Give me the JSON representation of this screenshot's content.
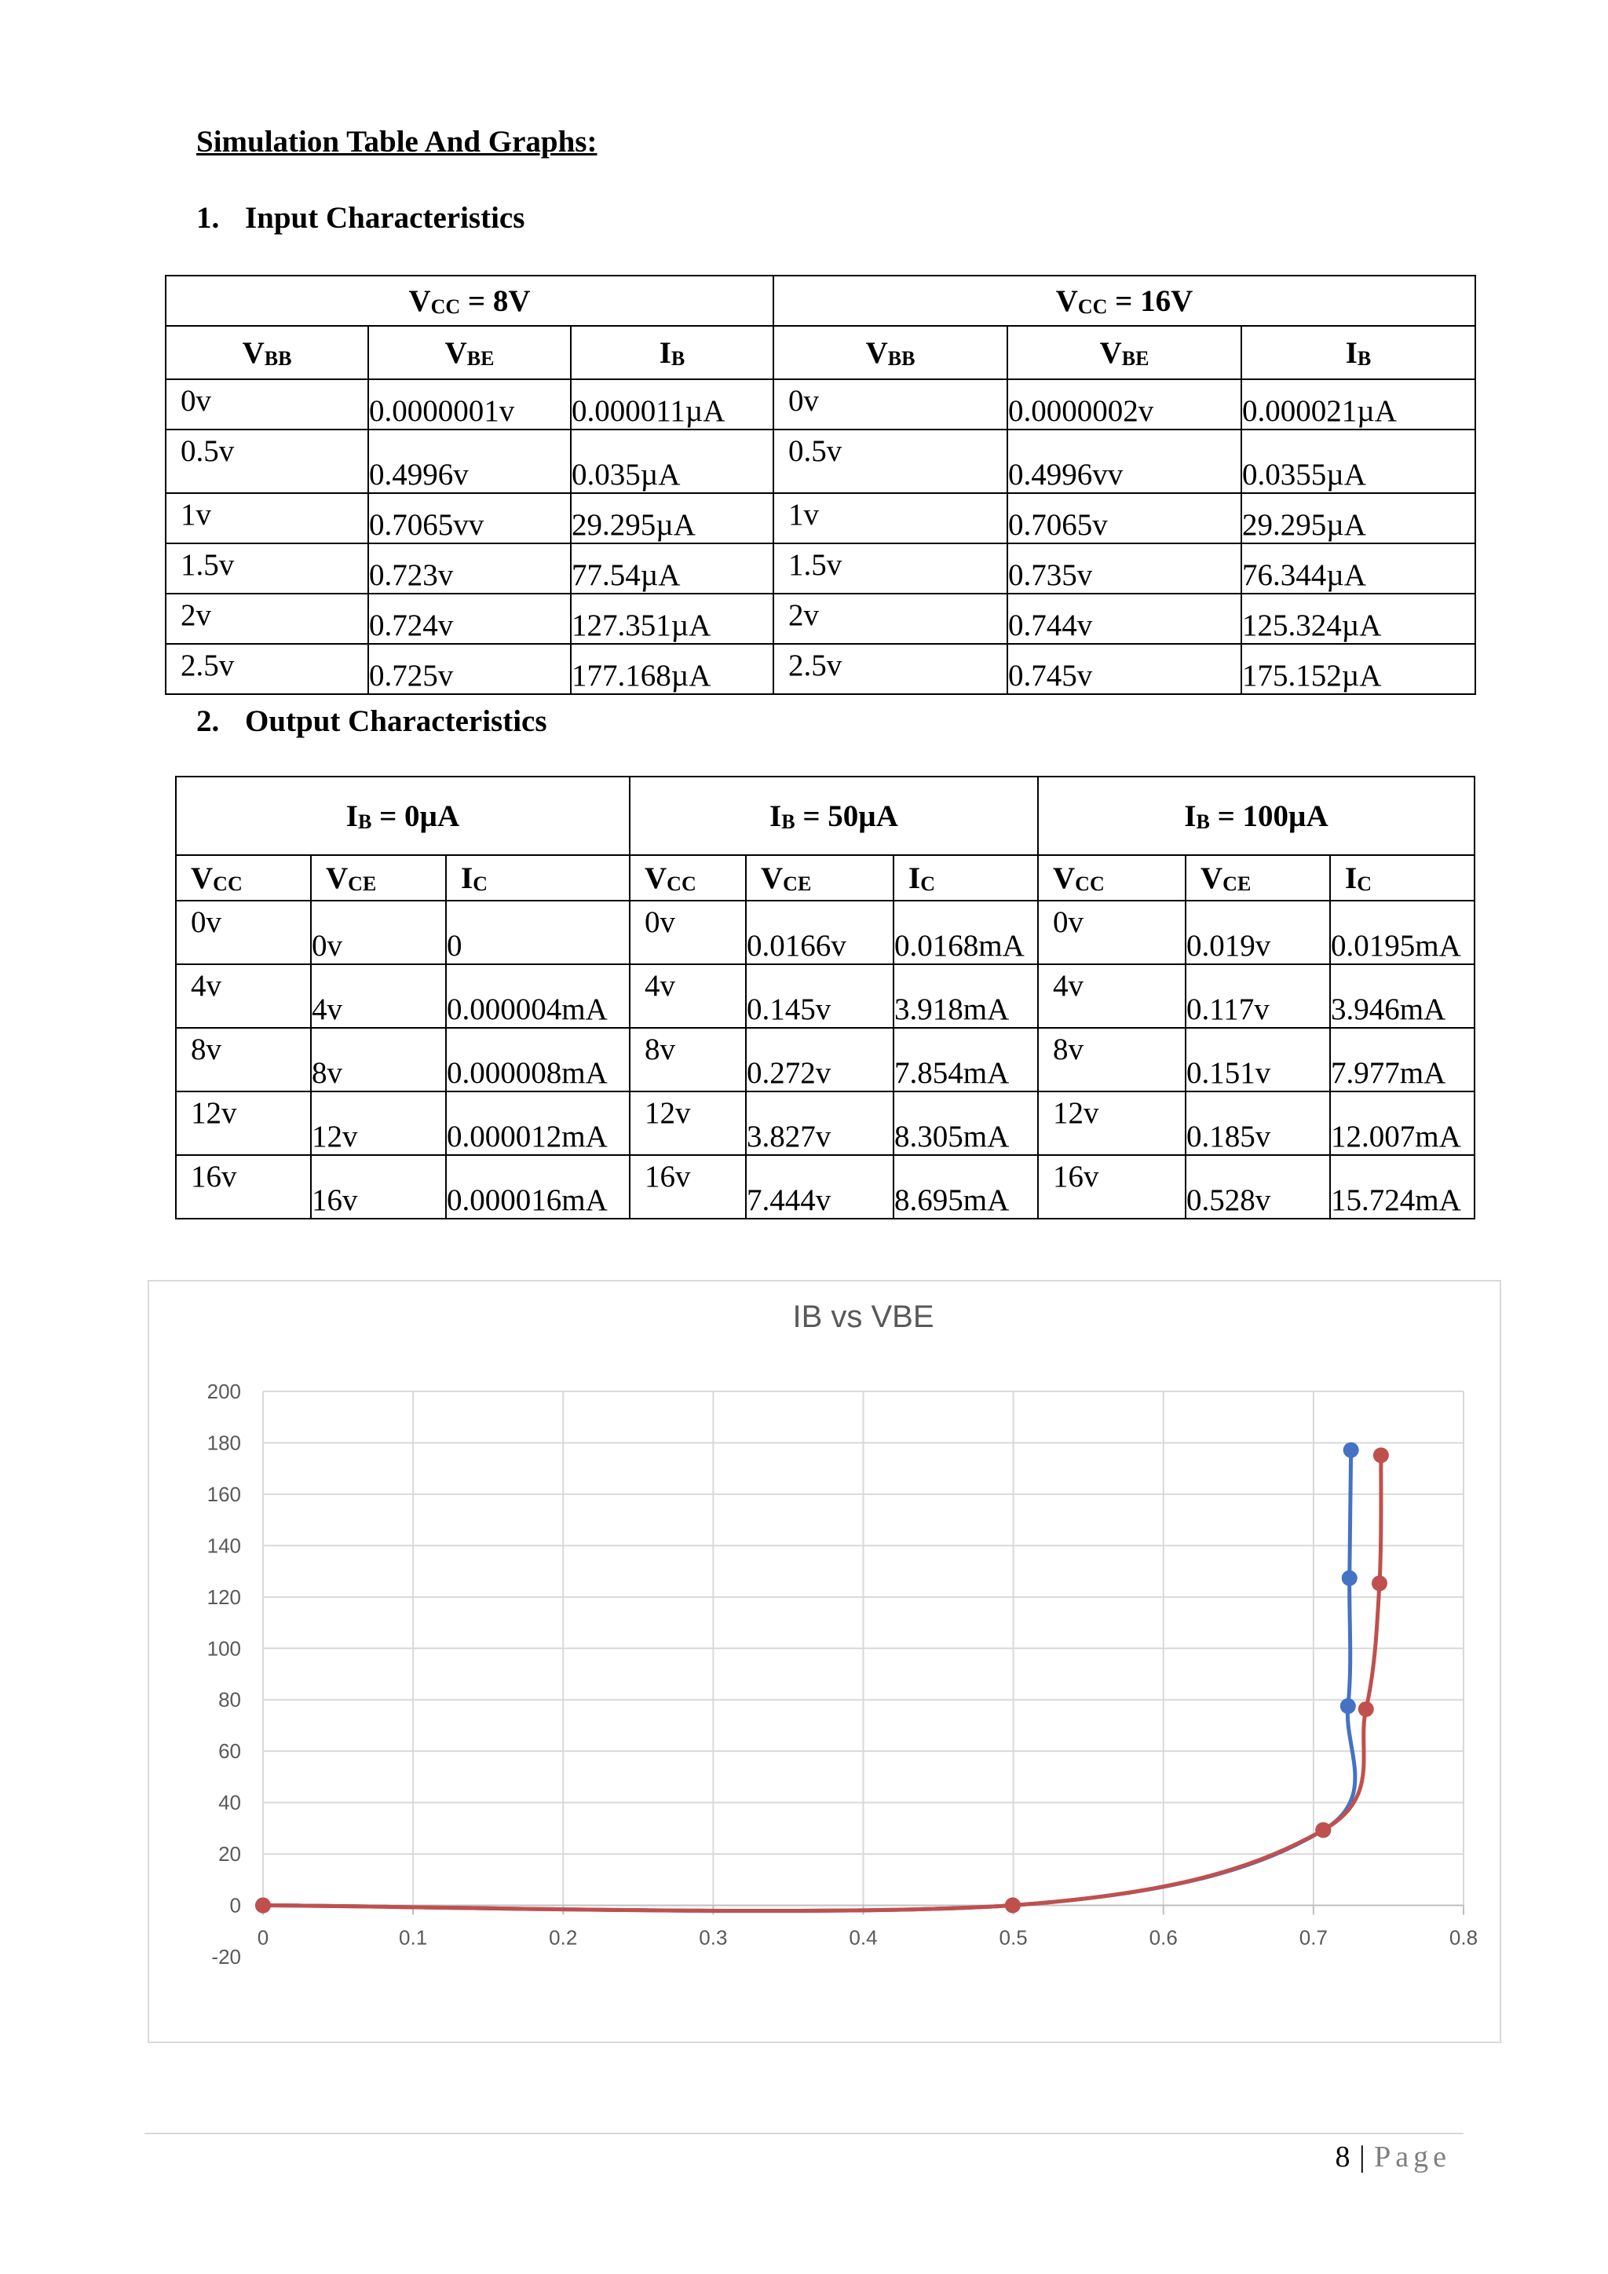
{
  "heading": "Simulation Table And Graphs:",
  "section1": {
    "number": "1.",
    "title": "Input Characteristics"
  },
  "section2": {
    "number": "2.",
    "title": "Output Characteristics"
  },
  "input_table": {
    "groups": [
      {
        "label_main": "V",
        "label_sub": "CC",
        "label_rest": " = 8V"
      },
      {
        "label_main": "V",
        "label_sub": "CC",
        "label_rest": " = 16V"
      }
    ],
    "columns": [
      {
        "main": "V",
        "sub": "BB"
      },
      {
        "main": "V",
        "sub": "BE"
      },
      {
        "main": "I",
        "sub": "B"
      },
      {
        "main": "V",
        "sub": "BB"
      },
      {
        "main": "V",
        "sub": "BE"
      },
      {
        "main": "I",
        "sub": "B"
      }
    ],
    "rows": [
      [
        "0v",
        "0.0000001v",
        "0.000011µA",
        "0v",
        "0.0000002v",
        "0.000021µA"
      ],
      [
        "0.5v",
        "0.4996v",
        "0.035µA",
        "0.5v",
        "0.4996vv",
        "0.0355µA"
      ],
      [
        "1v",
        "0.7065vv",
        "29.295µA",
        "1v",
        "0.7065v",
        "29.295µA"
      ],
      [
        "1.5v",
        "0.723v",
        "77.54µA",
        "1.5v",
        "0.735v",
        "76.344µA"
      ],
      [
        "2v",
        "0.724v",
        "127.351µA",
        "2v",
        "0.744v",
        "125.324µA"
      ],
      [
        "2.5v",
        "0.725v",
        "177.168µA",
        "2.5v",
        "0.745v",
        "175.152µA"
      ]
    ]
  },
  "output_table": {
    "groups": [
      {
        "label_main": "I",
        "label_sub": "B",
        "label_rest": " = 0µA"
      },
      {
        "label_main": "I",
        "label_sub": "B",
        "label_rest": " = 50µA"
      },
      {
        "label_main": "I",
        "label_sub": "B",
        "label_rest": " = 100µA"
      }
    ],
    "columns": [
      {
        "main": "V",
        "sub": "CC"
      },
      {
        "main": "V",
        "sub": "CE"
      },
      {
        "main": "I",
        "sub": "C"
      },
      {
        "main": "V",
        "sub": "CC"
      },
      {
        "main": "V",
        "sub": "CE"
      },
      {
        "main": "I",
        "sub": "C"
      },
      {
        "main": "V",
        "sub": "CC"
      },
      {
        "main": "V",
        "sub": "CE"
      },
      {
        "main": "I",
        "sub": "C"
      }
    ],
    "rows": [
      [
        "0v",
        "0v",
        "0",
        "0v",
        "0.0166v",
        "0.0168mA",
        "0v",
        "0.019v",
        "0.0195mA"
      ],
      [
        "4v",
        "4v",
        "0.000004mA",
        "4v",
        "0.145v",
        "3.918mA",
        "4v",
        "0.117v",
        "3.946mA"
      ],
      [
        "8v",
        "8v",
        "0.000008mA",
        "8v",
        "0.272v",
        "7.854mA",
        "8v",
        "0.151v",
        "7.977mA"
      ],
      [
        "12v",
        "12v",
        "0.000012mA",
        "12v",
        "3.827v",
        "8.305mA",
        "12v",
        "0.185v",
        "12.007mA"
      ],
      [
        "16v",
        "16v",
        "0.000016mA",
        "16v",
        "7.444v",
        "8.695mA",
        "16v",
        "0.528v",
        "15.724mA"
      ]
    ]
  },
  "chart_data": {
    "type": "scatter",
    "title": "IB vs VBE",
    "xlabel": "",
    "ylabel": "",
    "xlim": [
      0,
      0.8
    ],
    "ylim": [
      -20,
      200
    ],
    "x_ticks": [
      "0",
      "0.1",
      "0.2",
      "0.3",
      "0.4",
      "0.5",
      "0.6",
      "0.7",
      "0.8"
    ],
    "y_ticks": [
      "-20",
      "0",
      "20",
      "40",
      "60",
      "80",
      "100",
      "120",
      "140",
      "160",
      "180",
      "200"
    ],
    "grid": true,
    "legend": "none",
    "series": [
      {
        "color": "#4472c4",
        "x": [
          1e-07,
          0.4996,
          0.7065,
          0.723,
          0.724,
          0.725
        ],
        "y": [
          1.1e-05,
          0.035,
          29.295,
          77.54,
          127.351,
          177.168
        ]
      },
      {
        "color": "#c0504d",
        "x": [
          2e-07,
          0.4996,
          0.7065,
          0.735,
          0.744,
          0.745
        ],
        "y": [
          2.1e-05,
          0.0355,
          29.295,
          76.344,
          125.324,
          175.152
        ]
      }
    ]
  },
  "footer": {
    "page_number": "8",
    "separator": " | ",
    "page_word": "Page"
  }
}
